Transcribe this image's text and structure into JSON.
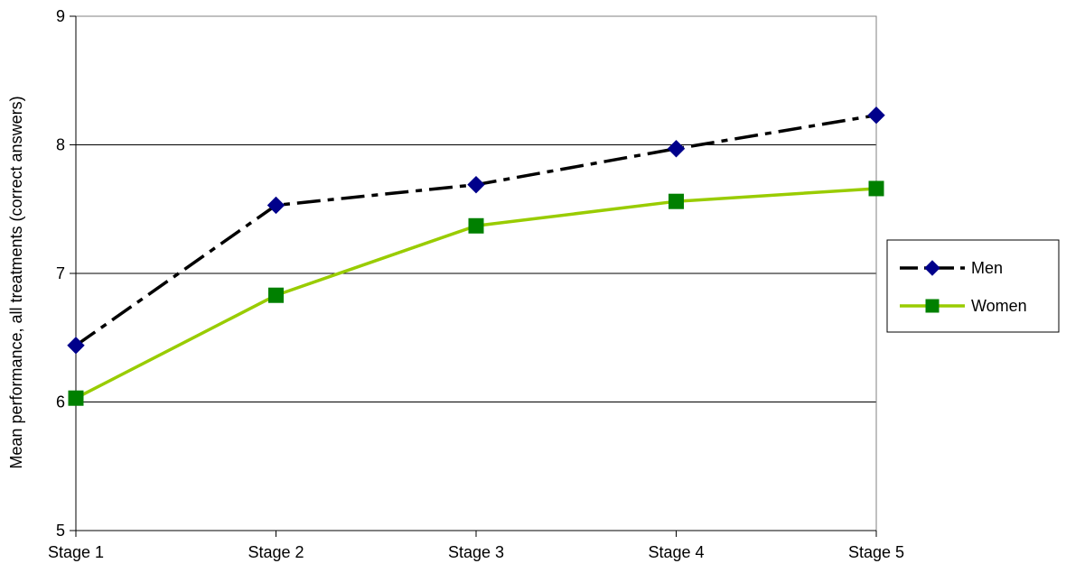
{
  "chart_data": {
    "type": "line",
    "title": "",
    "xlabel": "",
    "ylabel": "Mean performance, all treatments (correct answers)",
    "categories": [
      "Stage 1",
      "Stage 2",
      "Stage 3",
      "Stage 4",
      "Stage 5"
    ],
    "ylim": [
      5,
      9
    ],
    "yticks": [
      5,
      6,
      7,
      8,
      9
    ],
    "grid": true,
    "legend": "right",
    "series": [
      {
        "name": "Men",
        "values": [
          6.44,
          7.53,
          7.69,
          7.97,
          8.23
        ],
        "color": "#000000",
        "marker": "diamond",
        "marker_color": "#00008B",
        "line_style": "dash-dot"
      },
      {
        "name": "Women",
        "values": [
          6.03,
          6.83,
          7.37,
          7.56,
          7.66
        ],
        "color": "#99CC00",
        "marker": "square",
        "marker_color": "#008000",
        "line_style": "solid"
      }
    ]
  }
}
